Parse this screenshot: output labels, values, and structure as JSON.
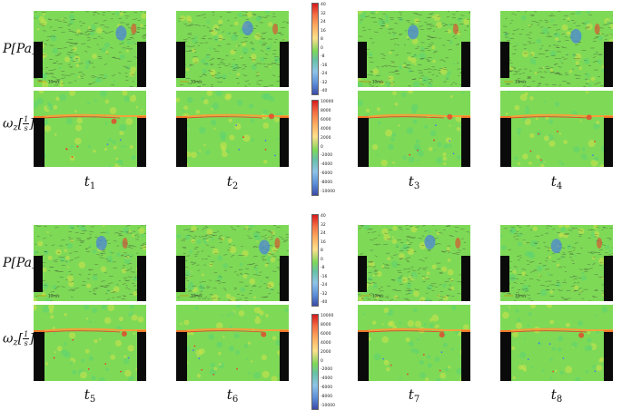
{
  "row_labels": {
    "pressure": {
      "base": "P",
      "unit": "[Pa]"
    },
    "vorticity": {
      "base": "ω",
      "sub": "z",
      "num": "1",
      "den": "s"
    }
  },
  "time_labels": {
    "t1": {
      "base": "t",
      "sub": "1"
    },
    "t2": {
      "base": "t",
      "sub": "2"
    },
    "t3": {
      "base": "t",
      "sub": "3"
    },
    "t4": {
      "base": "t",
      "sub": "4"
    },
    "t5": {
      "base": "t",
      "sub": "5"
    },
    "t6": {
      "base": "t",
      "sub": "6"
    },
    "t7": {
      "base": "t",
      "sub": "7"
    },
    "t8": {
      "base": "t",
      "sub": "8"
    }
  },
  "pressure_colorbar_ticks": [
    "40",
    "32",
    "24",
    "16",
    "8",
    "0",
    "-8",
    "-16",
    "-24",
    "-32",
    "-40"
  ],
  "vorticity_colorbar_ticks": [
    "10000",
    "8000",
    "6000",
    "4000",
    "2000",
    "0",
    "-2000",
    "-4000",
    "-6000",
    "-8000",
    "-10000"
  ],
  "scale_label": "10m/s",
  "colors": {
    "field": "#7ed957",
    "wall": "#0a0a0a",
    "high": "#e8412b",
    "low": "#4a7fe0"
  }
}
